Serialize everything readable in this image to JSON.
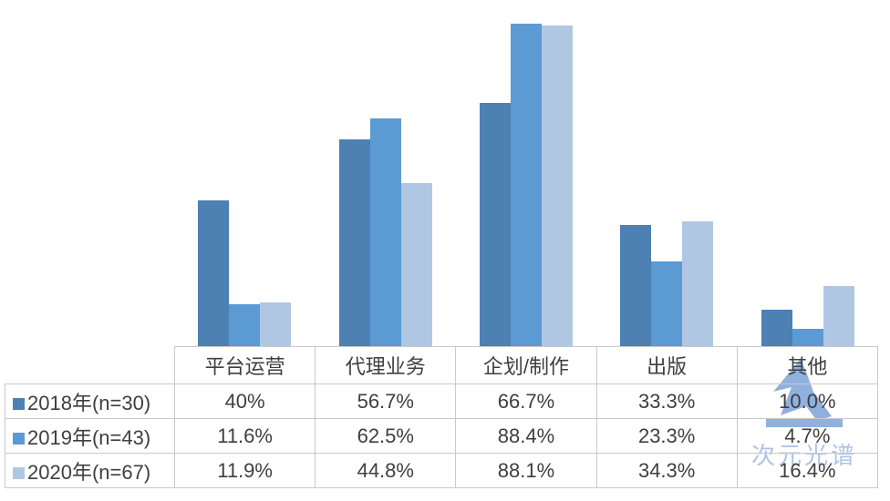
{
  "chart_data": {
    "type": "bar",
    "categories": [
      "平台运营",
      "代理业务",
      "企划/制作",
      "出版",
      "其他"
    ],
    "series": [
      {
        "name": "2018年(n=30)",
        "color": "#4d80b3",
        "values": [
          40,
          56.7,
          66.7,
          33.3,
          10.0
        ],
        "labels": [
          "40%",
          "56.7%",
          "66.7%",
          "33.3%",
          "10.0%"
        ]
      },
      {
        "name": "2019年(n=43)",
        "color": "#5b9ad3",
        "values": [
          11.6,
          62.5,
          88.4,
          23.3,
          4.7
        ],
        "labels": [
          "11.6%",
          "62.5%",
          "88.4%",
          "23.3%",
          "4.7%"
        ]
      },
      {
        "name": "2020年(n=67)",
        "color": "#b0c7e4",
        "values": [
          11.9,
          44.8,
          88.1,
          34.3,
          16.4
        ],
        "labels": [
          "11.9%",
          "44.8%",
          "88.1%",
          "34.3%",
          "16.4%"
        ]
      }
    ],
    "title": "",
    "xlabel": "",
    "ylabel": "",
    "ylim": [
      0,
      95
    ],
    "grid": false,
    "legend_position": "table-rows",
    "value_suffix": "%"
  },
  "watermark": {
    "text": "次元光谱",
    "logo_color": "#7da4d9",
    "text_color": "#a9c0e6"
  },
  "colors": {
    "series_2018": "#4d80b3",
    "series_2019": "#5b9ad3",
    "series_2020": "#b0c7e4",
    "table_border": "#c9c9c9",
    "table_text": "#3f3f3f"
  }
}
